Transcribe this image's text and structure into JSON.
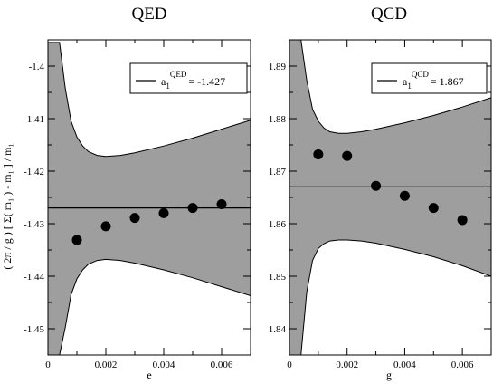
{
  "ylabel": "( 2π / g ) [ Σ( m₁ ) - m₁ ] / m₁",
  "chart_data": [
    {
      "type": "scatter",
      "title": "QED",
      "xlabel": "e",
      "ylabel": "( 2π / g ) [ Σ( m₁ ) - m₁ ] / m₁",
      "xlim": [
        0,
        0.007
      ],
      "ylim": [
        -1.455,
        -1.395
      ],
      "xticks": [
        0,
        0.002,
        0.004,
        0.006
      ],
      "xtick_labels": [
        "0",
        "0.002",
        "0.004",
        "0.006"
      ],
      "yticks": [
        -1.45,
        -1.44,
        -1.43,
        -1.42,
        -1.41,
        -1.4
      ],
      "ytick_labels": [
        "-1.45",
        "-1.44",
        "-1.43",
        "-1.42",
        "-1.41",
        "-1.4"
      ],
      "points": {
        "x": [
          0.001,
          0.002,
          0.003,
          0.004,
          0.005,
          0.006
        ],
        "y": [
          -1.4331,
          -1.4305,
          -1.4289,
          -1.428,
          -1.427,
          -1.4263
        ]
      },
      "fit_line": {
        "y": -1.427
      },
      "band_upper": {
        "x": [
          0.0,
          0.0002,
          0.0004,
          0.0006,
          0.0008,
          0.001,
          0.0012,
          0.0014,
          0.0017,
          0.002,
          0.0025,
          0.003,
          0.004,
          0.005,
          0.006,
          0.007
        ],
        "y": [
          -1.3955,
          -1.3955,
          -1.3955,
          -1.4043,
          -1.4105,
          -1.4135,
          -1.4152,
          -1.4163,
          -1.417,
          -1.4172,
          -1.417,
          -1.4165,
          -1.4152,
          -1.4137,
          -1.412,
          -1.4103
        ]
      },
      "band_lower": {
        "x": [
          0.0,
          0.0002,
          0.0004,
          0.0006,
          0.0008,
          0.001,
          0.0012,
          0.0014,
          0.0017,
          0.002,
          0.0025,
          0.003,
          0.004,
          0.005,
          0.006,
          0.007
        ],
        "y": [
          -1.455,
          -1.455,
          -1.455,
          -1.4497,
          -1.4435,
          -1.4405,
          -1.4388,
          -1.4377,
          -1.437,
          -1.4368,
          -1.437,
          -1.4375,
          -1.4388,
          -1.4403,
          -1.442,
          -1.4437
        ]
      },
      "legend": {
        "label": "a",
        "sub": "1",
        "sup": "QED",
        "value": "= -1.427",
        "position": "top-right"
      }
    },
    {
      "type": "scatter",
      "title": "QCD",
      "xlabel": "g",
      "ylabel": "",
      "xlim": [
        0,
        0.007
      ],
      "ylim": [
        1.835,
        1.895
      ],
      "xticks": [
        0,
        0.002,
        0.004,
        0.006
      ],
      "xtick_labels": [
        "0",
        "0.002",
        "0.004",
        "0.006"
      ],
      "yticks": [
        1.84,
        1.85,
        1.86,
        1.87,
        1.88,
        1.89
      ],
      "ytick_labels": [
        "1.84",
        "1.85",
        "1.86",
        "1.87",
        "1.88",
        "1.89"
      ],
      "points": {
        "x": [
          0.001,
          0.002,
          0.003,
          0.004,
          0.005,
          0.006
        ],
        "y": [
          1.8732,
          1.8729,
          1.8672,
          1.8653,
          1.863,
          1.8607
        ]
      },
      "fit_line": {
        "y": 1.867
      },
      "band_upper": {
        "x": [
          0.0,
          0.0002,
          0.0004,
          0.0006,
          0.0008,
          0.001,
          0.0012,
          0.0014,
          0.0017,
          0.002,
          0.0025,
          0.003,
          0.004,
          0.005,
          0.006,
          0.007
        ],
        "y": [
          1.895,
          1.895,
          1.895,
          1.8873,
          1.8818,
          1.8795,
          1.8782,
          1.8775,
          1.8772,
          1.8772,
          1.8775,
          1.878,
          1.8792,
          1.8806,
          1.8822,
          1.884
        ]
      },
      "band_lower": {
        "x": [
          0.0,
          0.0002,
          0.0004,
          0.0006,
          0.0008,
          0.001,
          0.0012,
          0.0014,
          0.0017,
          0.002,
          0.0025,
          0.003,
          0.004,
          0.005,
          0.006,
          0.007
        ],
        "y": [
          1.835,
          1.835,
          1.835,
          1.847,
          1.853,
          1.8553,
          1.8562,
          1.8567,
          1.8569,
          1.8569,
          1.8567,
          1.8563,
          1.8551,
          1.8537,
          1.852,
          1.85
        ]
      },
      "legend": {
        "label": "a",
        "sub": "1",
        "sup": "QCD",
        "value": "= 1.867",
        "position": "top-right"
      }
    }
  ]
}
